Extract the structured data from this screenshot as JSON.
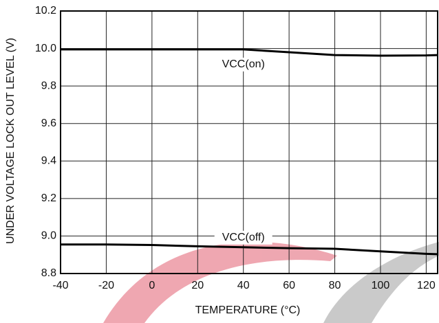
{
  "chart_data": {
    "type": "line",
    "x_label": "TEMPERATURE (°C)",
    "y_label": "UNDER VOLTAGE LOCK OUT LEVEL (V)",
    "x": [
      -40,
      -20,
      0,
      20,
      40,
      60,
      80,
      100,
      120,
      125
    ],
    "series": [
      {
        "name": "VCC(on)",
        "color": "#000000",
        "values": [
          9.995,
          9.995,
          9.995,
          9.995,
          9.995,
          9.98,
          9.965,
          9.962,
          9.963,
          9.965
        ]
      },
      {
        "name": "VCC(off)",
        "color": "#000000",
        "values": [
          8.955,
          8.955,
          8.952,
          8.945,
          8.94,
          8.935,
          8.932,
          8.918,
          8.905,
          8.903
        ]
      }
    ],
    "xlim": [
      -40,
      125
    ],
    "xticks": [
      -40,
      -20,
      0,
      20,
      40,
      60,
      80,
      100,
      120
    ],
    "ylim": [
      8.8,
      10.2
    ],
    "yticks": [
      8.8,
      {
        "value": 9,
        "label": "9.0"
      },
      9.2,
      9.4,
      9.6,
      9.8,
      {
        "value": 10,
        "label": "10.0"
      },
      10.2
    ],
    "grid": true
  }
}
